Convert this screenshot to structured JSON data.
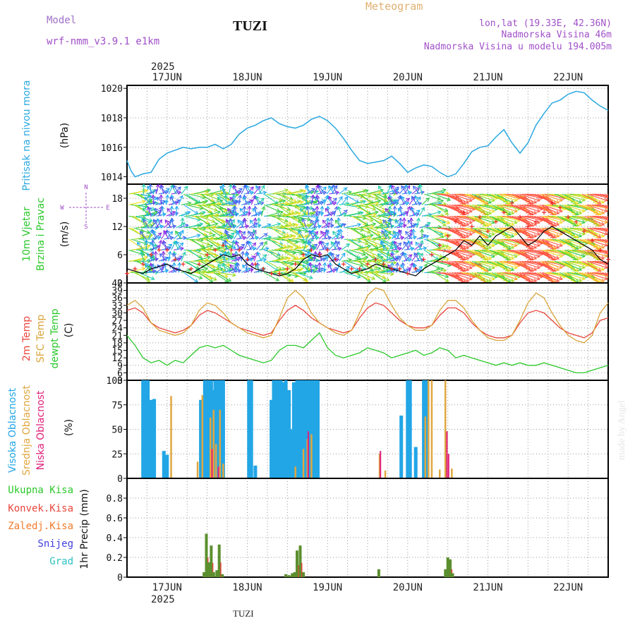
{
  "header": {
    "model_label": "Model",
    "model_name": "wrf-nmm_v3.9.1  e1km",
    "station": "TUZI",
    "product": "Meteogram",
    "lonlat": "lon,lat (19.33E, 42.36N)",
    "altitude": "Nadmorska Visina 46m",
    "model_altitude": "Nadmorska Visina u modelu 194.005m",
    "footer_station": "TUZI",
    "credit": "made by Angel"
  },
  "colors": {
    "pressure": "#29a8e0",
    "temp2m": "#e8463c",
    "sfc_temp": "#d9a43a",
    "dewpoint": "#2bc82b",
    "high_cloud": "#22a6e6",
    "mid_cloud": "#e0a640",
    "low_cloud": "#e0207a",
    "total_precip": "#5b8f2e",
    "conv_precip": "#e8463c",
    "frozen_precip": "#f07a2a",
    "snow": "#4040e0",
    "graupel": "#2cc0c0",
    "wind_purple": "#8a2be2",
    "model_label": "#a070c8",
    "meteogram_label": "#e0b070",
    "info_label": "#a050c8"
  },
  "chart_data": [
    {
      "id": "pressure",
      "type": "line",
      "ylabel_lines": [
        "Pritisak na nivou mora",
        "(hPa)"
      ],
      "ylim": [
        1013.5,
        1020.2
      ],
      "yticks": [
        "1014",
        "1016",
        "1018",
        "1020"
      ],
      "xlim": [
        16.5,
        22.5
      ],
      "x": [
        16.5,
        16.55,
        16.6,
        16.7,
        16.8,
        16.9,
        17.0,
        17.1,
        17.2,
        17.3,
        17.4,
        17.5,
        17.6,
        17.7,
        17.8,
        17.9,
        18.0,
        18.1,
        18.2,
        18.3,
        18.4,
        18.5,
        18.6,
        18.7,
        18.8,
        18.9,
        19.0,
        19.1,
        19.2,
        19.3,
        19.4,
        19.5,
        19.6,
        19.7,
        19.8,
        19.9,
        20.0,
        20.1,
        20.2,
        20.3,
        20.4,
        20.5,
        20.6,
        20.7,
        20.8,
        20.9,
        21.0,
        21.1,
        21.2,
        21.3,
        21.4,
        21.5,
        21.6,
        21.7,
        21.8,
        21.9,
        22.0,
        22.1,
        22.2,
        22.3,
        22.4,
        22.5
      ],
      "values": [
        1015.1,
        1014.4,
        1014.0,
        1014.2,
        1014.3,
        1015.2,
        1015.6,
        1015.8,
        1016.0,
        1015.9,
        1016.0,
        1016.0,
        1016.2,
        1015.9,
        1016.2,
        1016.9,
        1017.3,
        1017.5,
        1017.8,
        1018.0,
        1017.6,
        1017.4,
        1017.3,
        1017.5,
        1017.9,
        1018.1,
        1017.8,
        1017.3,
        1016.6,
        1015.8,
        1015.1,
        1014.9,
        1015.0,
        1015.1,
        1015.4,
        1014.9,
        1014.3,
        1014.6,
        1014.8,
        1014.7,
        1014.3,
        1014.0,
        1014.2,
        1014.9,
        1015.7,
        1016.0,
        1016.1,
        1016.7,
        1017.2,
        1016.3,
        1015.6,
        1016.3,
        1017.5,
        1018.3,
        1019.0,
        1019.2,
        1019.6,
        1019.8,
        1019.7,
        1019.2,
        1018.8,
        1018.5
      ]
    },
    {
      "id": "wind",
      "type": "line",
      "ylabel_lines": [
        "10m Vjetar",
        "Brzina i Pravac",
        "(m/s)"
      ],
      "compass": [
        "N",
        "E",
        "S",
        "W"
      ],
      "ylim": [
        0,
        21
      ],
      "yticks": [
        "0",
        "6",
        "12",
        "18"
      ],
      "xlim": [
        16.5,
        22.5
      ],
      "x": [
        16.5,
        16.6,
        16.7,
        16.8,
        16.9,
        17.0,
        17.1,
        17.2,
        17.3,
        17.4,
        17.5,
        17.6,
        17.7,
        17.8,
        17.9,
        18.0,
        18.1,
        18.2,
        18.3,
        18.4,
        18.5,
        18.6,
        18.7,
        18.8,
        18.9,
        19.0,
        19.1,
        19.2,
        19.3,
        19.4,
        19.5,
        19.6,
        19.7,
        19.8,
        19.9,
        20.0,
        20.1,
        20.2,
        20.3,
        20.4,
        20.5,
        20.6,
        20.7,
        20.8,
        20.9,
        21.0,
        21.1,
        21.2,
        21.3,
        21.4,
        21.5,
        21.6,
        21.7,
        21.8,
        21.9,
        22.0,
        22.1,
        22.2,
        22.3,
        22.4,
        22.5
      ],
      "speed": [
        3,
        2.5,
        2,
        3,
        3.5,
        4,
        3,
        2.5,
        2,
        3,
        4,
        5,
        6,
        5.5,
        6,
        4,
        3,
        2.5,
        2,
        1.5,
        2,
        3,
        5,
        6,
        5.5,
        6,
        4,
        3,
        2,
        2.5,
        3,
        4,
        3.5,
        3,
        2.5,
        2,
        1.5,
        3,
        4,
        5,
        6,
        7,
        9,
        8,
        10,
        8,
        10,
        11,
        12,
        10,
        8,
        9,
        11,
        12,
        11,
        10,
        9,
        8,
        7,
        5,
        4
      ],
      "gust": [
        2,
        3,
        4,
        6,
        7,
        7,
        5,
        4,
        3,
        4,
        6,
        7,
        8,
        7,
        7,
        5,
        4,
        3,
        2,
        2,
        3,
        4,
        6,
        7,
        6,
        7,
        5,
        4,
        3,
        3,
        4,
        5,
        4,
        3,
        3,
        2,
        3,
        5,
        6,
        8,
        10,
        13,
        15,
        12,
        14,
        11,
        13,
        15,
        17,
        14,
        12,
        13,
        15,
        17,
        16,
        14,
        13,
        11,
        9,
        7,
        5
      ]
    },
    {
      "id": "temperature",
      "type": "line",
      "ylabel_lines": [
        "2m Temp",
        "SFC Temp",
        "dewpt Temp",
        "(C)"
      ],
      "ylim": [
        3,
        42
      ],
      "yticks": [
        "3",
        "6",
        "9",
        "12",
        "15",
        "18",
        "21",
        "24",
        "27",
        "30",
        "33",
        "36",
        "39",
        "42"
      ],
      "xlim": [
        16.5,
        22.5
      ],
      "x": [
        16.5,
        16.6,
        16.7,
        16.8,
        16.9,
        17.0,
        17.1,
        17.2,
        17.3,
        17.4,
        17.5,
        17.6,
        17.7,
        17.8,
        17.9,
        18.0,
        18.1,
        18.2,
        18.3,
        18.4,
        18.5,
        18.6,
        18.7,
        18.8,
        18.9,
        19.0,
        19.1,
        19.2,
        19.3,
        19.4,
        19.5,
        19.6,
        19.7,
        19.8,
        19.9,
        20.0,
        20.1,
        20.2,
        20.3,
        20.4,
        20.5,
        20.6,
        20.7,
        20.8,
        20.9,
        21.0,
        21.1,
        21.2,
        21.3,
        21.4,
        21.5,
        21.6,
        21.7,
        21.8,
        21.9,
        22.0,
        22.1,
        22.2,
        22.3,
        22.4,
        22.5
      ],
      "series": [
        {
          "name": "2m Temp",
          "values": [
            31,
            32,
            30,
            26,
            24,
            23,
            22,
            23,
            25,
            29,
            31,
            30,
            28,
            26,
            24,
            23,
            22,
            21,
            22,
            27,
            31,
            33,
            31,
            28,
            26,
            24,
            23,
            22,
            23,
            28,
            32,
            34,
            33,
            30,
            27,
            25,
            24,
            24,
            25,
            29,
            32,
            32,
            30,
            26,
            23,
            21,
            20,
            20,
            21,
            26,
            30,
            31,
            30,
            27,
            24,
            22,
            21,
            20,
            22,
            27,
            28
          ]
        },
        {
          "name": "SFC Temp",
          "values": [
            33,
            35,
            32,
            26,
            23,
            22,
            21,
            22,
            25,
            31,
            34,
            33,
            30,
            26,
            24,
            22,
            21,
            20,
            21,
            28,
            36,
            39,
            36,
            30,
            26,
            24,
            22,
            21,
            23,
            30,
            37,
            40,
            39,
            33,
            28,
            25,
            23,
            23,
            25,
            31,
            35,
            35,
            32,
            27,
            23,
            20,
            19,
            19,
            21,
            27,
            34,
            38,
            36,
            30,
            25,
            21,
            19,
            18,
            21,
            30,
            34
          ]
        },
        {
          "name": "dewpt Temp",
          "values": [
            21,
            17,
            12,
            10,
            11,
            9,
            11,
            10,
            13,
            16,
            17,
            16,
            17,
            15,
            13,
            12,
            11,
            10,
            11,
            15,
            17,
            17,
            16,
            19,
            22,
            16,
            13,
            12,
            13,
            14,
            16,
            15,
            14,
            12,
            13,
            14,
            15,
            13,
            14,
            16,
            15,
            12,
            13,
            12,
            11,
            10,
            9,
            10,
            9,
            10,
            9,
            9,
            10,
            9,
            8,
            7,
            6,
            6,
            7,
            8,
            9
          ]
        }
      ]
    },
    {
      "id": "clouds",
      "type": "bar",
      "ylabel_lines": [
        "Visoka Oblacnost",
        "Srednja Oblacnost",
        "Niska Oblacnost",
        "(%)"
      ],
      "ylim": [
        0,
        100
      ],
      "yticks": [
        "0",
        "25",
        "50",
        "75",
        "100"
      ],
      "xlim": [
        16.5,
        22.5
      ],
      "series": [
        {
          "name": "Visoka Oblacnost",
          "x": [
            16.7,
            16.72,
            16.74,
            16.76,
            16.8,
            16.82,
            16.84,
            16.96,
            17.0,
            17.42,
            17.47,
            17.49,
            17.51,
            17.53,
            17.55,
            17.57,
            17.6,
            17.62,
            17.65,
            17.67,
            17.7,
            18.02,
            18.05,
            18.1,
            18.3,
            18.33,
            18.36,
            18.39,
            18.42,
            18.45,
            18.48,
            18.52,
            18.55,
            18.58,
            18.62,
            18.65,
            18.68,
            18.72,
            18.75,
            18.78,
            18.82,
            18.85,
            18.88,
            19.92,
            20.0,
            20.03,
            20.1,
            20.2,
            20.23
          ],
          "values": [
            100,
            100,
            100,
            100,
            80,
            80,
            81,
            28,
            24,
            80,
            100,
            100,
            100,
            100,
            100,
            90,
            100,
            100,
            100,
            100,
            100,
            100,
            100,
            13,
            80,
            100,
            100,
            100,
            100,
            98,
            100,
            90,
            50,
            98,
            100,
            100,
            100,
            100,
            100,
            100,
            100,
            100,
            100,
            64,
            100,
            100,
            32,
            100,
            100
          ]
        },
        {
          "name": "Srednja Oblacnost",
          "x": [
            17.05,
            17.38,
            17.44,
            17.54,
            17.58,
            17.61,
            17.66,
            17.7,
            18.6,
            18.7,
            18.75,
            18.8,
            19.65,
            19.72,
            20.22,
            20.26,
            20.3,
            20.4,
            20.47,
            20.55
          ],
          "values": [
            84,
            17,
            85,
            62,
            70,
            35,
            70,
            15,
            12,
            30,
            40,
            45,
            25,
            8,
            63,
            100,
            100,
            9,
            100,
            10
          ]
        },
        {
          "name": "Niska Oblacnost",
          "x": [
            17.56,
            17.64,
            18.76,
            19.66,
            20.49,
            20.51
          ],
          "values": [
            30,
            12,
            48,
            28,
            48,
            25
          ]
        }
      ]
    },
    {
      "id": "precip",
      "type": "bar",
      "ylabel_lines": [
        "1hr Precip (mm)"
      ],
      "legend": [
        "Ukupna Kisa",
        "Konvek.Kisa",
        "Zaledj.Kisa",
        "Snijeg",
        "Grad"
      ],
      "ylim": [
        0,
        1.0
      ],
      "yticks": [
        "0",
        "0.2",
        "0.4",
        "0.6",
        "0.8"
      ],
      "xlim": [
        16.5,
        22.5
      ],
      "x": [
        17.46,
        17.49,
        17.52,
        17.55,
        17.58,
        17.62,
        17.65,
        17.69,
        18.48,
        18.52,
        18.56,
        18.59,
        18.62,
        18.66,
        18.7,
        19.64,
        20.47,
        20.5,
        20.53,
        20.56
      ],
      "values": [
        0.05,
        0.44,
        0.15,
        0.32,
        0.05,
        0.07,
        0.33,
        0.03,
        0.03,
        0.02,
        0.04,
        0.05,
        0.27,
        0.32,
        0.05,
        0.08,
        0.08,
        0.2,
        0.18,
        0.04
      ]
    }
  ],
  "time_axis": {
    "year_label": "2025",
    "days": [
      {
        "x": 17.0,
        "label": "17JUN"
      },
      {
        "x": 18.0,
        "label": "18JUN"
      },
      {
        "x": 19.0,
        "label": "19JUN"
      },
      {
        "x": 20.0,
        "label": "20JUN"
      },
      {
        "x": 21.0,
        "label": "21JUN"
      },
      {
        "x": 22.0,
        "label": "22JUN"
      }
    ]
  }
}
